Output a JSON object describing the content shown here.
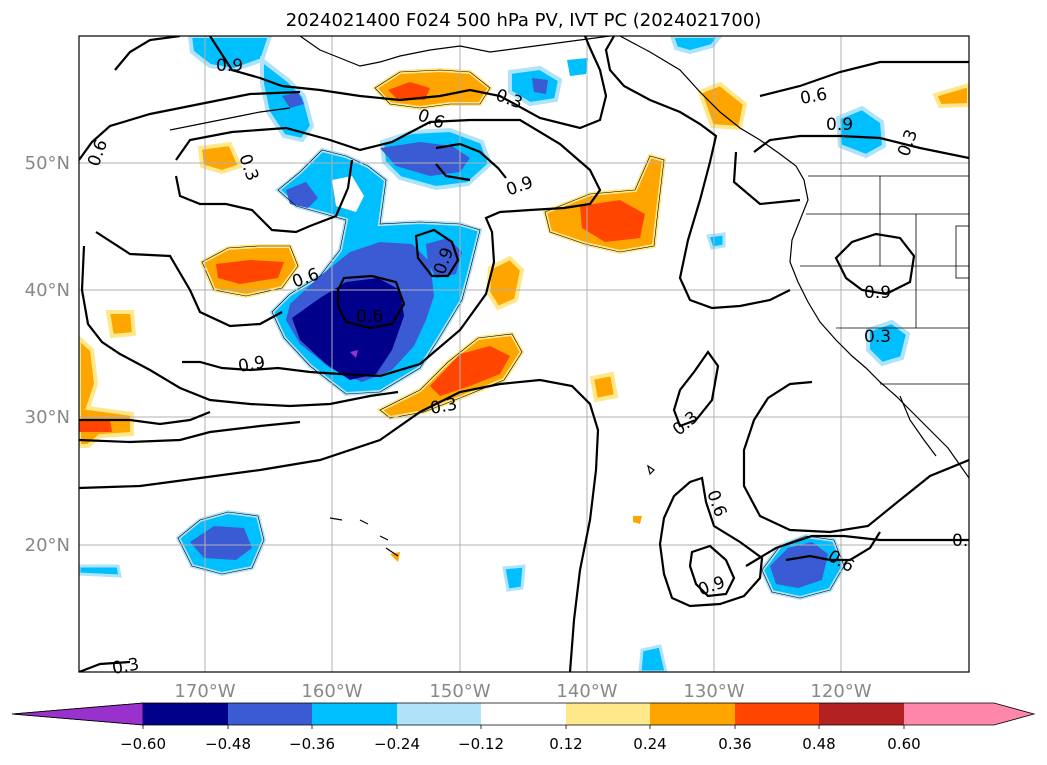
{
  "title": "2024021400 F024 500 hPa PV, IVT PC (2024021700)",
  "map": {
    "lon_ticks": [
      "170°W",
      "160°W",
      "150°W",
      "140°W",
      "130°W",
      "120°W"
    ],
    "lat_ticks": [
      "50°N",
      "40°N",
      "30°N",
      "20°N"
    ],
    "contour_labels": [
      "0.9",
      "0.3",
      "0.6",
      "0.6",
      "0.3",
      "0.9",
      "0.6",
      "0.9",
      "0.6",
      "0.9",
      "0.6",
      "0.9",
      "0.3",
      "0.9",
      "0.3",
      "0.3",
      "0.3",
      "0.6",
      "0.9",
      "0.6",
      "0.",
      "0.3"
    ],
    "colors": {
      "neg_extend": "#9932cc",
      "n060": "#00008b",
      "n048": "#3a5bd4",
      "n036": "#00bfff",
      "n024": "#aee3fa",
      "zero": "#ffffff",
      "p012": "#ffe88a",
      "p024": "#ffa500",
      "p036": "#ff4500",
      "p048": "#b22222",
      "pos_extend": "#ff88aa"
    }
  },
  "colorbar": {
    "labels": [
      "−0.60",
      "−0.48",
      "−0.36",
      "−0.24",
      "−0.12",
      "0.12",
      "0.24",
      "0.36",
      "0.48",
      "0.60"
    ]
  }
}
